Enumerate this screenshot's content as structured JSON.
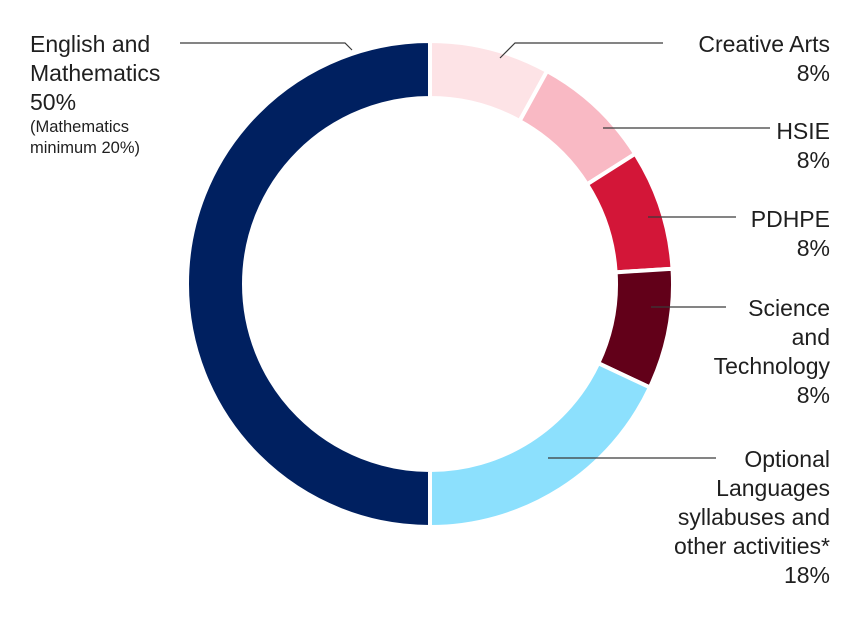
{
  "chart_data": {
    "type": "pie",
    "style": "donut",
    "slices": [
      {
        "key": "creative-arts",
        "value": 8,
        "color": "#fde3e6",
        "label_lines": [
          "Creative Arts"
        ],
        "value_label": "8%"
      },
      {
        "key": "hsie",
        "value": 8,
        "color": "#f9b9c4",
        "label_lines": [
          "HSIE"
        ],
        "value_label": "8%"
      },
      {
        "key": "pdhpe",
        "value": 8,
        "color": "#d31638",
        "label_lines": [
          "PDHPE"
        ],
        "value_label": "8%"
      },
      {
        "key": "science-and-technology",
        "value": 8,
        "color": "#620019",
        "label_lines": [
          "Science",
          "and",
          "Technology"
        ],
        "value_label": "8%"
      },
      {
        "key": "optional-languages",
        "value": 18,
        "color": "#8ce0fd",
        "label_lines": [
          "Optional",
          "Languages",
          "syllabuses and",
          "other activities*"
        ],
        "value_label": "18%"
      },
      {
        "key": "english-and-mathematics",
        "value": 50,
        "color": "#002060",
        "label_lines": [
          "English and",
          "Mathematics"
        ],
        "value_label": "50%",
        "note_lines": [
          "(Mathematics",
          "minimum 20%)"
        ]
      }
    ]
  }
}
